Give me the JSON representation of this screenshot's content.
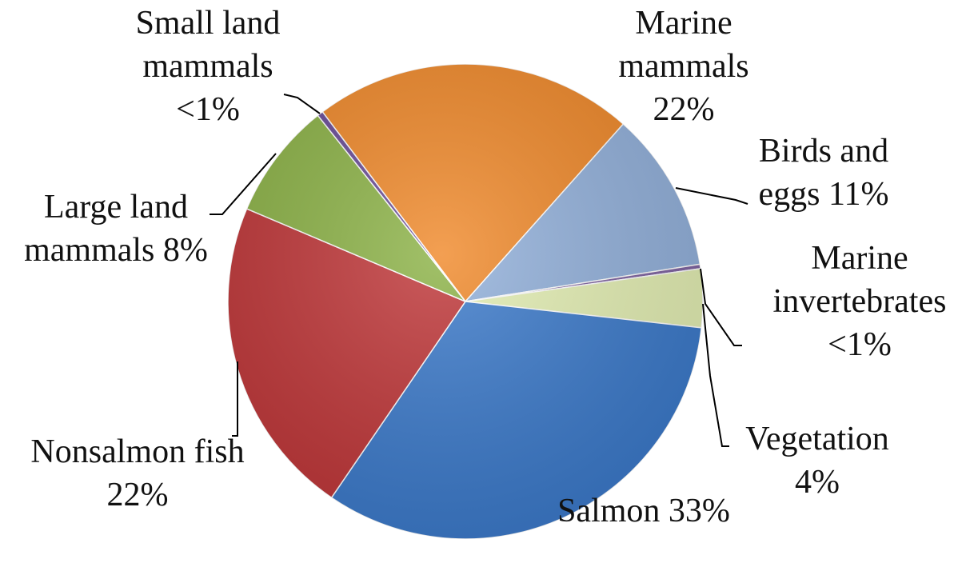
{
  "chart_data": {
    "type": "pie",
    "categories": [
      "Marine mammals",
      "Birds and eggs",
      "Marine invertebrates",
      "Vegetation",
      "Salmon",
      "Nonsalmon fish",
      "Large land mammals",
      "Small land mammals"
    ],
    "values": [
      22,
      11,
      0.3,
      4,
      33,
      22,
      8,
      0.4
    ],
    "value_labels": [
      "22%",
      "11%",
      "<1%",
      "4%",
      "33%",
      "22%",
      "8%",
      "<1%"
    ],
    "colors": [
      "#f08a2c",
      "#93b1db",
      "#8064a2",
      "#e4efb4",
      "#3d7bcb",
      "#c0383a",
      "#8db348",
      "#6a4c98"
    ]
  }
}
